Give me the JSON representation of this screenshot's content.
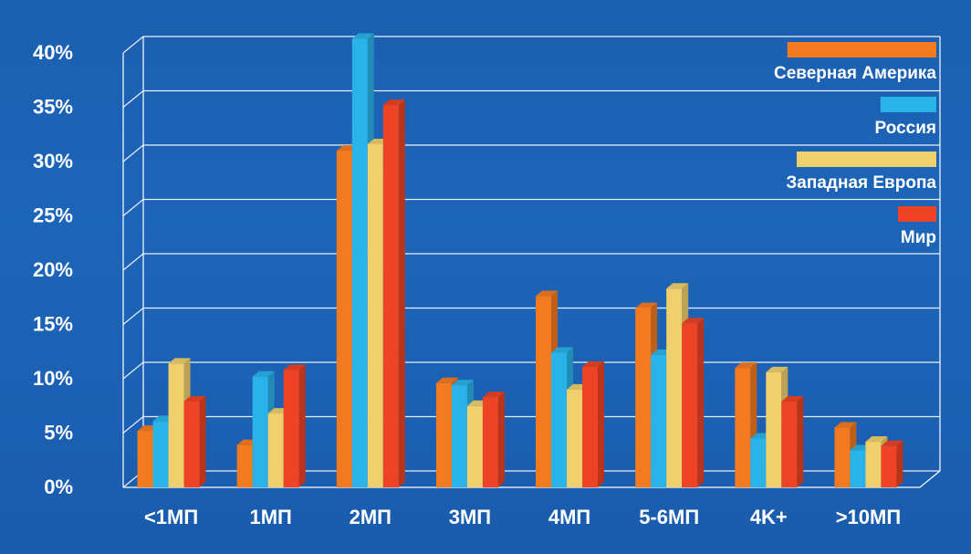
{
  "chart_data": {
    "type": "bar",
    "title": "",
    "xlabel": "",
    "ylabel": "",
    "ylim": [
      0,
      40
    ],
    "yticks": [
      "0%",
      "5%",
      "10%",
      "15%",
      "20%",
      "25%",
      "30%",
      "35%",
      "40%"
    ],
    "grid": true,
    "legend_position": "top-right",
    "categories": [
      "<1МП",
      "1МП",
      "2МП",
      "3МП",
      "4МП",
      "5-6МП",
      "4K+",
      ">10МП"
    ],
    "series": [
      {
        "name": "Северная Америка",
        "color": "#f47a20",
        "values": [
          5.2,
          3.9,
          31.0,
          9.6,
          17.6,
          16.5,
          11.0,
          5.5
        ]
      },
      {
        "name": "Россия",
        "color": "#2ab3e8",
        "values": [
          6.1,
          10.2,
          41.3,
          9.4,
          12.4,
          12.2,
          4.5,
          3.4
        ]
      },
      {
        "name": "Западная Европа",
        "color": "#f0d06c",
        "values": [
          11.4,
          6.8,
          31.6,
          7.5,
          9.0,
          18.3,
          10.6,
          4.2
        ]
      },
      {
        "name": "Мир",
        "color": "#ee4324",
        "values": [
          7.9,
          10.8,
          35.2,
          8.3,
          11.1,
          15.1,
          7.9,
          3.8
        ]
      }
    ]
  }
}
